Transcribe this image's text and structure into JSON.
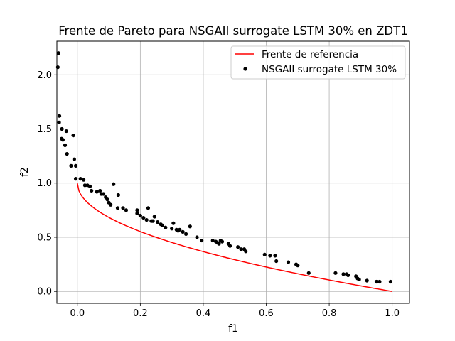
{
  "chart_data": {
    "type": "scatter",
    "title": "Frente de Pareto para NSGAII surrogate LSTM 30% en ZDT1",
    "xlabel": "f1",
    "ylabel": "f2",
    "xlim": [
      -0.065,
      1.055
    ],
    "ylim": [
      -0.11,
      2.31
    ],
    "grid": true,
    "legend_position": "top-right",
    "x_ticks": [
      "0.0",
      "0.2",
      "0.4",
      "0.6",
      "0.8",
      "1.0"
    ],
    "x_tick_values": [
      0.0,
      0.2,
      0.4,
      0.6,
      0.8,
      1.0
    ],
    "y_ticks": [
      "0.0",
      "0.5",
      "1.0",
      "1.5",
      "2.0"
    ],
    "y_tick_values": [
      0.0,
      0.5,
      1.0,
      1.5,
      2.0
    ],
    "series": [
      {
        "name": "Frente de referencia",
        "kind": "line",
        "color": "#ff0000",
        "function": "1 - sqrt(f1)",
        "x_range": [
          0.0,
          1.0
        ]
      },
      {
        "name": "NSGAII surrogate LSTM 30%",
        "kind": "scatter",
        "color": "#000000",
        "points": [
          [
            -0.06,
            2.2
          ],
          [
            -0.062,
            2.07
          ],
          [
            -0.057,
            1.62
          ],
          [
            -0.058,
            1.56
          ],
          [
            -0.049,
            1.5
          ],
          [
            -0.035,
            1.48
          ],
          [
            -0.013,
            1.44
          ],
          [
            -0.05,
            1.41
          ],
          [
            -0.046,
            1.4
          ],
          [
            -0.039,
            1.35
          ],
          [
            -0.033,
            1.27
          ],
          [
            -0.01,
            1.22
          ],
          [
            -0.02,
            1.16
          ],
          [
            -0.005,
            1.16
          ],
          [
            -0.005,
            1.04
          ],
          [
            0.01,
            1.04
          ],
          [
            0.02,
            1.03
          ],
          [
            0.024,
            0.98
          ],
          [
            0.032,
            0.98
          ],
          [
            0.04,
            0.97
          ],
          [
            0.045,
            0.93
          ],
          [
            0.062,
            0.92
          ],
          [
            0.072,
            0.93
          ],
          [
            0.076,
            0.9
          ],
          [
            0.083,
            0.9
          ],
          [
            0.09,
            0.87
          ],
          [
            0.095,
            0.85
          ],
          [
            0.1,
            0.82
          ],
          [
            0.106,
            0.8
          ],
          [
            0.115,
            0.99
          ],
          [
            0.13,
            0.89
          ],
          [
            0.128,
            0.77
          ],
          [
            0.145,
            0.77
          ],
          [
            0.155,
            0.75
          ],
          [
            0.19,
            0.75
          ],
          [
            0.19,
            0.72
          ],
          [
            0.2,
            0.7
          ],
          [
            0.21,
            0.68
          ],
          [
            0.22,
            0.66
          ],
          [
            0.225,
            0.77
          ],
          [
            0.235,
            0.65
          ],
          [
            0.24,
            0.65
          ],
          [
            0.245,
            0.69
          ],
          [
            0.255,
            0.64
          ],
          [
            0.265,
            0.62
          ],
          [
            0.27,
            0.61
          ],
          [
            0.28,
            0.59
          ],
          [
            0.3,
            0.58
          ],
          [
            0.305,
            0.63
          ],
          [
            0.315,
            0.57
          ],
          [
            0.32,
            0.56
          ],
          [
            0.325,
            0.57
          ],
          [
            0.335,
            0.55
          ],
          [
            0.345,
            0.53
          ],
          [
            0.358,
            0.6
          ],
          [
            0.38,
            0.5
          ],
          [
            0.395,
            0.47
          ],
          [
            0.43,
            0.47
          ],
          [
            0.44,
            0.46
          ],
          [
            0.445,
            0.45
          ],
          [
            0.45,
            0.44
          ],
          [
            0.455,
            0.47
          ],
          [
            0.46,
            0.46
          ],
          [
            0.48,
            0.44
          ],
          [
            0.485,
            0.42
          ],
          [
            0.51,
            0.41
          ],
          [
            0.52,
            0.39
          ],
          [
            0.53,
            0.39
          ],
          [
            0.535,
            0.37
          ],
          [
            0.595,
            0.34
          ],
          [
            0.612,
            0.33
          ],
          [
            0.628,
            0.33
          ],
          [
            0.632,
            0.28
          ],
          [
            0.67,
            0.27
          ],
          [
            0.695,
            0.25
          ],
          [
            0.7,
            0.24
          ],
          [
            0.735,
            0.17
          ],
          [
            0.82,
            0.17
          ],
          [
            0.845,
            0.16
          ],
          [
            0.855,
            0.16
          ],
          [
            0.86,
            0.15
          ],
          [
            0.885,
            0.14
          ],
          [
            0.89,
            0.12
          ],
          [
            0.895,
            0.11
          ],
          [
            0.92,
            0.1
          ],
          [
            0.95,
            0.09
          ],
          [
            0.96,
            0.09
          ],
          [
            0.995,
            0.09
          ]
        ]
      }
    ]
  }
}
